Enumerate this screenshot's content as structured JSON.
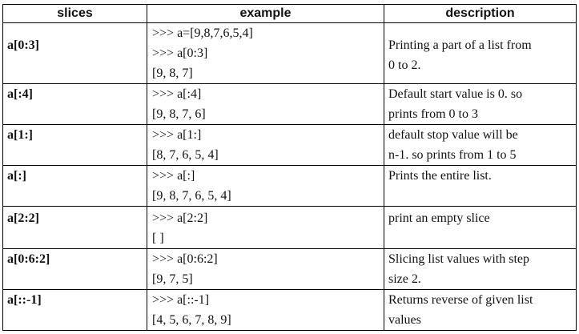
{
  "headers": [
    "slices",
    "example",
    "description"
  ],
  "rows": [
    {
      "slice": "a[0:3]",
      "example": [
        ">>> a=[9,8,7,6,5,4]",
        ">>> a[0:3]",
        "[9, 8, 7]"
      ],
      "description": [
        "Printing a part of a list from",
        "0 to 2."
      ]
    },
    {
      "slice": "a[:4]",
      "example": [
        ">>> a[:4]",
        "[9, 8, 7, 6]"
      ],
      "description": [
        "Default start value is 0. so",
        "prints from 0 to 3"
      ]
    },
    {
      "slice": "a[1:]",
      "example": [
        ">>> a[1:]",
        "[8, 7, 6, 5, 4]"
      ],
      "description": [
        "default stop value will be",
        "n-1. so prints from 1 to 5"
      ]
    },
    {
      "slice": "a[:]",
      "example": [
        ">>> a[:]",
        "[9, 8, 7, 6, 5, 4]"
      ],
      "description": [
        "Prints the entire list."
      ]
    },
    {
      "slice": "a[2:2]",
      "example": [
        ">>> a[2:2]",
        "[ ]"
      ],
      "description": [
        "print an empty slice"
      ]
    },
    {
      "slice": "a[0:6:2]",
      "example": [
        ">>> a[0:6:2]",
        "[9, 7, 5]"
      ],
      "description": [
        "Slicing list values with step",
        "size 2."
      ]
    },
    {
      "slice": "a[::-1]",
      "example": [
        ">>> a[::-1]",
        "[4, 5, 6, 7, 8, 9]"
      ],
      "description": [
        "Returns reverse of given list",
        "values"
      ]
    }
  ]
}
